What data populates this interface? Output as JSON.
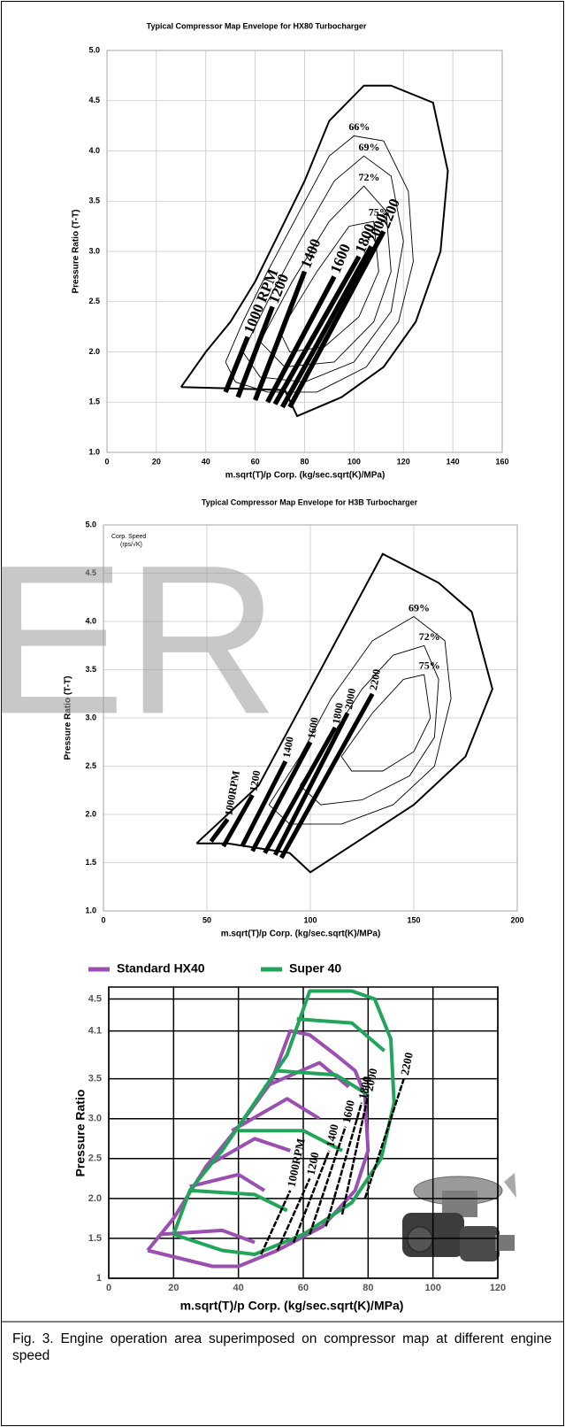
{
  "watermark": "ER",
  "caption": "Fig. 3. Engine operation area superimposed on compressor map at different engine speed",
  "chart_data": [
    {
      "type": "line",
      "title": "Typical Compressor Map Envelope for HX80 Turbocharger",
      "xlabel": "m.sqrt(T)/p Corp.   (kg/sec.sqrt(K)/MPa)",
      "ylabel": "Pressure Ratio (T-T)",
      "xlim": [
        0,
        160
      ],
      "xticks": [
        0,
        20,
        40,
        60,
        80,
        100,
        120,
        140,
        160
      ],
      "ylim": [
        1,
        5
      ],
      "yticks": [
        {
          "value": 1,
          "label": "1.0"
        },
        1.5,
        {
          "value": 2,
          "label": "2.0"
        },
        2.5,
        {
          "value": 3,
          "label": "3.0"
        },
        3.5,
        {
          "value": 4,
          "label": "4.0"
        },
        4.5,
        {
          "value": 5,
          "label": "5.0"
        }
      ],
      "grid": true,
      "grid_color": "#c8c8c8",
      "envelope": {
        "color": "#000000",
        "x": [
          30,
          40,
          50,
          60,
          70,
          80,
          90,
          104,
          115,
          132,
          138,
          135,
          125,
          112,
          95,
          77,
          72,
          30
        ],
        "values": [
          1.65,
          2.0,
          2.3,
          2.7,
          3.2,
          3.7,
          4.3,
          4.65,
          4.65,
          4.48,
          3.8,
          3.0,
          2.3,
          1.85,
          1.55,
          1.36,
          1.62,
          1.65
        ]
      },
      "efficiency": [
        {
          "name": "66%",
          "color": "#000000",
          "x": [
            48,
            55,
            65,
            78,
            90,
            100,
            112,
            122,
            124,
            118,
            105,
            85,
            65,
            52,
            48
          ],
          "values": [
            1.9,
            2.3,
            2.8,
            3.4,
            3.95,
            4.15,
            4.1,
            3.6,
            2.9,
            2.3,
            1.85,
            1.6,
            1.6,
            1.7,
            1.9
          ]
        },
        {
          "name": "69%",
          "color": "#000000",
          "x": [
            55,
            65,
            78,
            92,
            104,
            115,
            120,
            115,
            100,
            80,
            62,
            55
          ],
          "values": [
            2.0,
            2.5,
            3.1,
            3.7,
            3.95,
            3.75,
            3.1,
            2.4,
            1.9,
            1.7,
            1.75,
            2.0
          ]
        },
        {
          "name": "72%",
          "color": "#000000",
          "x": [
            62,
            75,
            90,
            104,
            113,
            115,
            108,
            92,
            72,
            62
          ],
          "values": [
            2.1,
            2.7,
            3.3,
            3.65,
            3.4,
            2.8,
            2.3,
            1.9,
            1.85,
            2.1
          ]
        },
        {
          "name": "75%",
          "color": "#000000",
          "x": [
            70,
            85,
            98,
            108,
            110,
            102,
            88,
            74,
            70
          ],
          "values": [
            2.2,
            2.8,
            3.25,
            3.3,
            2.8,
            2.35,
            2.05,
            2.0,
            2.2
          ]
        }
      ],
      "speed_lines": [
        {
          "name": "1000 RPM",
          "color": "#000000",
          "x": [
            48,
            57
          ],
          "values": [
            1.6,
            2.15
          ]
        },
        {
          "name": "1200",
          "color": "#000000",
          "x": [
            53,
            67
          ],
          "values": [
            1.55,
            2.45
          ]
        },
        {
          "name": "1400",
          "color": "#000000",
          "x": [
            60,
            80
          ],
          "values": [
            1.52,
            2.8
          ]
        },
        {
          "name": "1600",
          "color": "#000000",
          "x": [
            65,
            92
          ],
          "values": [
            1.5,
            2.75
          ]
        },
        {
          "name": "1800",
          "color": "#000000",
          "x": [
            68,
            102
          ],
          "values": [
            1.48,
            2.95
          ]
        },
        {
          "name": "2000",
          "color": "#000000",
          "x": [
            71,
            107
          ],
          "values": [
            1.45,
            3.05
          ]
        },
        {
          "name": "2200",
          "color": "#000000",
          "x": [
            74,
            112
          ],
          "values": [
            1.45,
            3.2
          ]
        }
      ]
    },
    {
      "type": "line",
      "title": "Typical Compressor Map Envelope for H3B Turbocharger",
      "annotations": [
        "Corp. Speed",
        "(rps/√K)"
      ],
      "xlabel": "m.sqrt(T)/p Corp.   (kg/sec.sqrt(K)/MPa)",
      "ylabel": "Pressure Ratio (T-T)",
      "xlim": [
        0,
        200
      ],
      "xticks": [
        0,
        50,
        100,
        150,
        200
      ],
      "ylim": [
        1,
        5
      ],
      "yticks": [
        {
          "value": 1,
          "label": "1.0"
        },
        1.5,
        {
          "value": 2,
          "label": "2.0"
        },
        2.5,
        {
          "value": 3,
          "label": "3.0"
        },
        3.5,
        {
          "value": 4,
          "label": "4.0"
        },
        4.5,
        {
          "value": 5,
          "label": "5.0"
        }
      ],
      "grid": true,
      "grid_color": "#c8c8c8",
      "envelope": {
        "color": "#000000",
        "x": [
          45,
          60,
          90,
          100,
          125,
          150,
          175,
          188,
          178,
          162,
          135,
          100,
          75,
          45
        ],
        "values": [
          1.7,
          1.7,
          1.6,
          1.4,
          1.75,
          2.1,
          2.6,
          3.3,
          4.1,
          4.4,
          4.7,
          3.3,
          2.3,
          1.7
        ]
      },
      "efficiency": [
        {
          "name": "69%",
          "color": "#000000",
          "x": [
            80,
            95,
            110,
            130,
            150,
            165,
            168,
            160,
            140,
            115,
            90,
            80
          ],
          "values": [
            2.1,
            2.6,
            3.2,
            3.8,
            4.05,
            3.8,
            3.2,
            2.5,
            2.1,
            1.9,
            1.9,
            2.1
          ]
        },
        {
          "name": "72%",
          "color": "#000000",
          "x": [
            95,
            110,
            125,
            140,
            155,
            162,
            160,
            148,
            125,
            105,
            95
          ],
          "values": [
            2.3,
            2.8,
            3.3,
            3.65,
            3.75,
            3.4,
            2.8,
            2.4,
            2.15,
            2.1,
            2.3
          ]
        },
        {
          "name": "75%",
          "color": "#000000",
          "x": [
            115,
            130,
            145,
            155,
            158,
            150,
            135,
            120,
            115
          ],
          "values": [
            2.6,
            3.05,
            3.4,
            3.45,
            3.0,
            2.65,
            2.45,
            2.45,
            2.6
          ]
        }
      ],
      "speed_lines": [
        {
          "name": "1000RPM",
          "color": "#000000",
          "x": [
            52,
            60
          ],
          "values": [
            1.72,
            1.95
          ]
        },
        {
          "name": "1200",
          "color": "#000000",
          "x": [
            58,
            72
          ],
          "values": [
            1.67,
            2.2
          ]
        },
        {
          "name": "1400",
          "color": "#000000",
          "x": [
            67,
            88
          ],
          "values": [
            1.67,
            2.55
          ]
        },
        {
          "name": "1600",
          "color": "#000000",
          "x": [
            72,
            100
          ],
          "values": [
            1.62,
            2.75
          ]
        },
        {
          "name": "1800",
          "color": "#000000",
          "x": [
            78,
            112
          ],
          "values": [
            1.6,
            2.9
          ]
        },
        {
          "name": "2000",
          "color": "#000000",
          "x": [
            83,
            118
          ],
          "values": [
            1.58,
            3.05
          ]
        },
        {
          "name": "2200",
          "color": "#000000",
          "x": [
            86,
            130
          ],
          "values": [
            1.55,
            3.25
          ]
        }
      ]
    },
    {
      "type": "line",
      "xlabel": "m.sqrt(T)/p Corp.   (kg/sec.sqrt(K)/MPa)",
      "ylabel": "Pressure Ratio",
      "xlim": [
        0,
        120
      ],
      "xticks": [
        0,
        20,
        40,
        60,
        80,
        100,
        120
      ],
      "ylim": [
        1,
        4.65
      ],
      "yticks": [
        1,
        1.5,
        {
          "value": 2,
          "label": "2.0"
        },
        2.5,
        {
          "value": 3,
          "label": "3.0"
        },
        3.5,
        4.1,
        4.5
      ],
      "grid": true,
      "grid_color": "#000000",
      "legend": "top",
      "series": [
        {
          "name": "Standard HX40",
          "color": "#9b4fb0",
          "x": [
            12,
            20,
            30,
            40,
            50,
            56,
            62,
            70,
            76,
            79,
            80,
            76,
            66,
            52,
            40,
            32,
            12,
            null,
            25,
            40,
            48,
            null,
            30,
            45,
            56,
            null,
            38,
            55,
            65,
            null,
            48,
            65,
            74,
            null,
            16,
            35,
            45
          ],
          "values": [
            1.35,
            1.75,
            2.4,
            2.9,
            3.45,
            4.1,
            4.05,
            3.8,
            3.6,
            3.3,
            2.6,
            2.1,
            1.65,
            1.35,
            1.15,
            1.15,
            1.35,
            null,
            2.15,
            2.3,
            2.1,
            null,
            2.4,
            2.75,
            2.6,
            null,
            2.85,
            3.25,
            3.0,
            null,
            3.4,
            3.7,
            3.4,
            null,
            1.55,
            1.6,
            1.45
          ]
        },
        {
          "name": "Super 40",
          "color": "#22a55b",
          "x": [
            20,
            25,
            35,
            45,
            55,
            62,
            75,
            82,
            87,
            88,
            84,
            75,
            60,
            45,
            35,
            20,
            null,
            25,
            45,
            55,
            null,
            40,
            60,
            72,
            null,
            52,
            70,
            80,
            null,
            58,
            75,
            85
          ],
          "values": [
            1.55,
            2.1,
            2.6,
            3.2,
            3.8,
            4.6,
            4.6,
            4.5,
            4.0,
            3.2,
            2.5,
            1.95,
            1.55,
            1.3,
            1.35,
            1.55,
            null,
            2.1,
            2.05,
            1.85,
            null,
            2.85,
            2.85,
            2.6,
            null,
            3.6,
            3.55,
            3.3,
            null,
            4.25,
            4.2,
            3.85
          ]
        }
      ],
      "speed_lines": [
        {
          "name": "1000RPM",
          "color": "#000000",
          "x": [
            47,
            56
          ],
          "values": [
            1.3,
            2.1
          ]
        },
        {
          "name": "1200",
          "color": "#000000",
          "x": [
            52,
            62
          ],
          "values": [
            1.35,
            2.25
          ]
        },
        {
          "name": "1400",
          "color": "#000000",
          "x": [
            57,
            68
          ],
          "values": [
            1.45,
            2.6
          ]
        },
        {
          "name": "1600",
          "color": "#000000",
          "x": [
            62,
            73
          ],
          "values": [
            1.55,
            2.9
          ]
        },
        {
          "name": "1800",
          "color": "#000000",
          "x": [
            67,
            78
          ],
          "values": [
            1.65,
            3.2
          ]
        },
        {
          "name": "2000",
          "color": "#000000",
          "x": [
            72,
            80
          ],
          "values": [
            1.8,
            3.3
          ]
        },
        {
          "name": "2200",
          "color": "#000000",
          "x": [
            79,
            91
          ],
          "values": [
            2.0,
            3.5
          ]
        }
      ]
    }
  ]
}
